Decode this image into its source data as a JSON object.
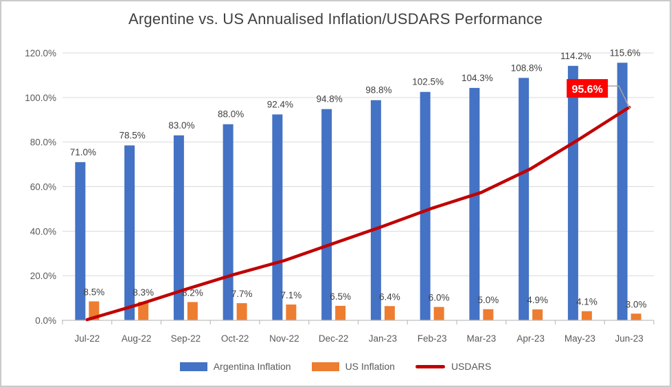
{
  "frame": {
    "border_color": "#CBC9C9",
    "background": "#FFFFFF"
  },
  "chart_data": {
    "type": "bar+line combo",
    "title": "Argentine vs. US Annualised Inflation/USDARS Performance",
    "categories": [
      "Jul-22",
      "Aug-22",
      "Sep-22",
      "Oct-22",
      "Nov-22",
      "Dec-22",
      "Jan-23",
      "Feb-23",
      "Mar-23",
      "Apr-23",
      "May-23",
      "Jun-23"
    ],
    "series": [
      {
        "name": "Argentina Inflation",
        "type": "bar",
        "color": "#4472C4",
        "values": [
          71.0,
          78.5,
          83.0,
          88.0,
          92.4,
          94.8,
          98.8,
          102.5,
          104.3,
          108.8,
          114.2,
          115.6
        ],
        "labels": [
          "71.0%",
          "78.5%",
          "83.0%",
          "88.0%",
          "92.4%",
          "94.8%",
          "98.8%",
          "102.5%",
          "104.3%",
          "108.8%",
          "114.2%",
          "115.6%"
        ]
      },
      {
        "name": "US Inflation",
        "type": "bar",
        "color": "#ED7D31",
        "values": [
          8.5,
          8.3,
          8.2,
          7.7,
          7.1,
          6.5,
          6.4,
          6.0,
          5.0,
          4.9,
          4.1,
          3.0
        ],
        "labels": [
          "8.5%",
          "8.3%",
          "8.2%",
          "7.7%",
          "7.1%",
          "6.5%",
          "6.4%",
          "6.0%",
          "5.0%",
          "4.9%",
          "4.1%",
          "3.0%"
        ]
      },
      {
        "name": "USDARS",
        "type": "line",
        "color": "#C00000",
        "values": [
          0.3,
          6.8,
          13.9,
          20.7,
          26.8,
          34.5,
          42.2,
          50.3,
          57.4,
          68.0,
          81.5,
          95.6
        ]
      }
    ],
    "callout": {
      "text": "95.6%",
      "background": "#FF0000",
      "text_color": "#FFFFFF",
      "attached_to": "USDARS Jun-23"
    },
    "y_axis": {
      "ylim": [
        0,
        120
      ],
      "ticks": [
        0,
        20,
        40,
        60,
        80,
        100,
        120
      ],
      "tick_labels": [
        "0.0%",
        "20.0%",
        "40.0%",
        "60.0%",
        "80.0%",
        "100.0%",
        "120.0%"
      ]
    },
    "grid": true,
    "legend_position": "bottom"
  },
  "legend": {
    "items": [
      {
        "label": "Argentina Inflation",
        "color": "#4472C4",
        "marker": "bar"
      },
      {
        "label": "US Inflation",
        "color": "#ED7D31",
        "marker": "bar"
      },
      {
        "label": "USDARS",
        "color": "#C00000",
        "marker": "line"
      }
    ]
  },
  "colors": {
    "gridline": "#D9D9D9",
    "axis_line": "#BFBFBF",
    "axis_text": "#595959",
    "data_label": "#404040",
    "title_text": "#404040"
  }
}
